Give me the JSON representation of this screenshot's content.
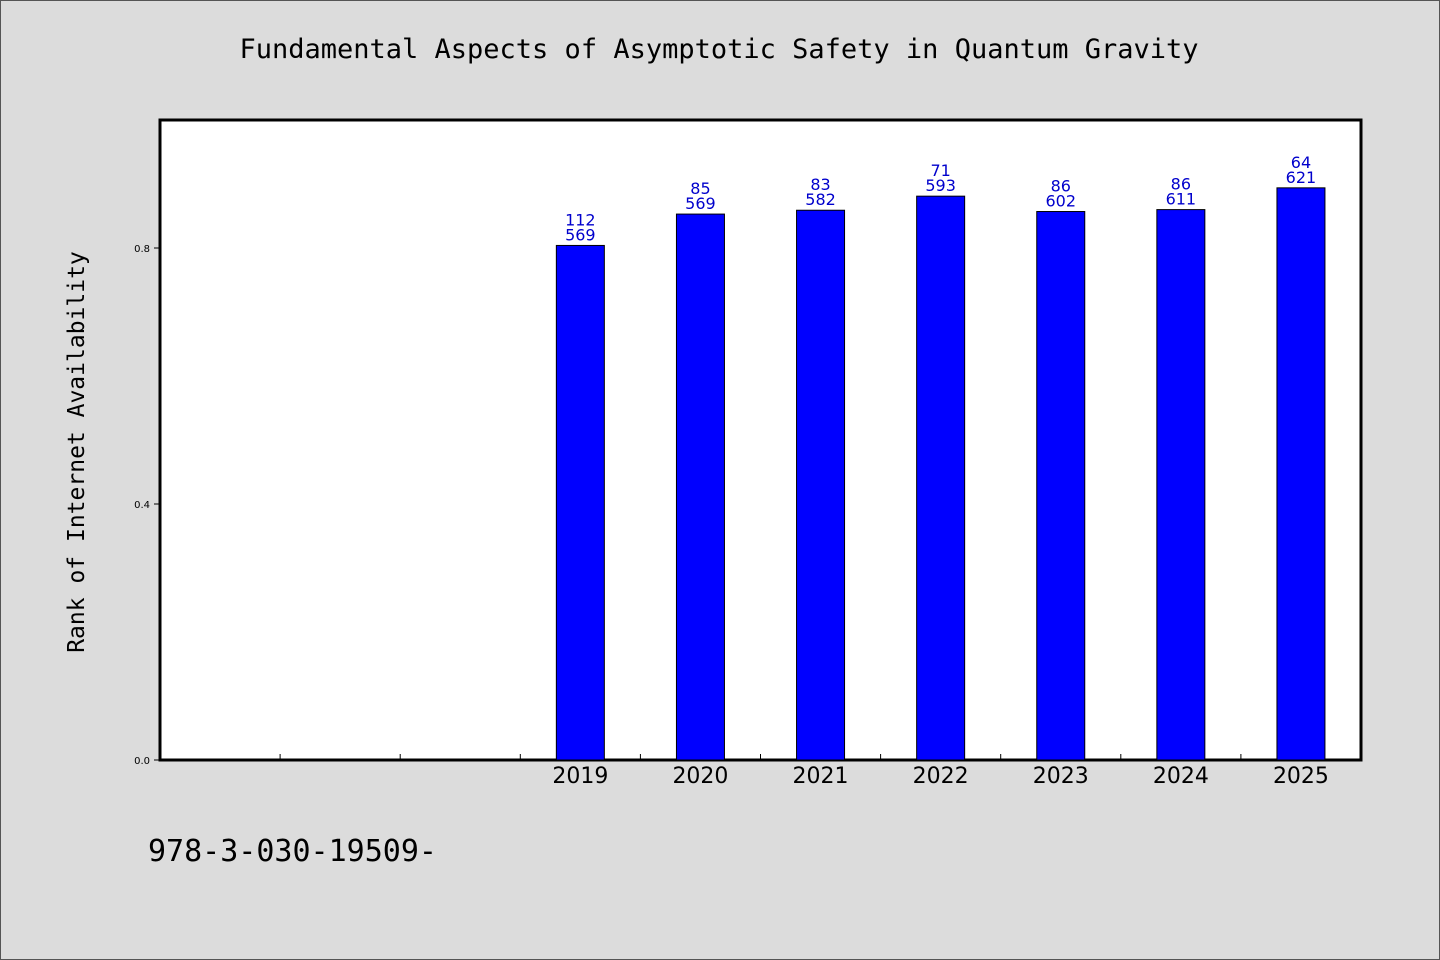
{
  "chart_data": {
    "type": "bar",
    "title": "Fundamental Aspects of Asymptotic Safety in Quantum Gravity",
    "ylabel": "Rank of Internet Availability",
    "xlabel": "",
    "categories": [
      "",
      "",
      "",
      "2019",
      "2020",
      "2021",
      "2022",
      "2023",
      "2024",
      "2025"
    ],
    "values": [
      null,
      null,
      null,
      0.804,
      0.853,
      0.859,
      0.881,
      0.857,
      0.86,
      0.894
    ],
    "data_labels": [
      [
        "",
        ""
      ],
      [
        "",
        ""
      ],
      [
        "",
        ""
      ],
      [
        "112",
        "569"
      ],
      [
        "85",
        "569"
      ],
      [
        "83",
        "582"
      ],
      [
        "71",
        "593"
      ],
      [
        "86",
        "602"
      ],
      [
        "86",
        "611"
      ],
      [
        "64",
        "621"
      ]
    ],
    "ylim": [
      0,
      1.0
    ],
    "yticks": [
      "0.0",
      "0.4",
      "0.8"
    ],
    "ytick_values": [
      0.0,
      0.4,
      0.8
    ],
    "grid": false,
    "legend": "none",
    "bar_color": "#0000ff",
    "label_color": "#0000cc"
  },
  "footer": {
    "code": "978-3-030-19509-"
  }
}
